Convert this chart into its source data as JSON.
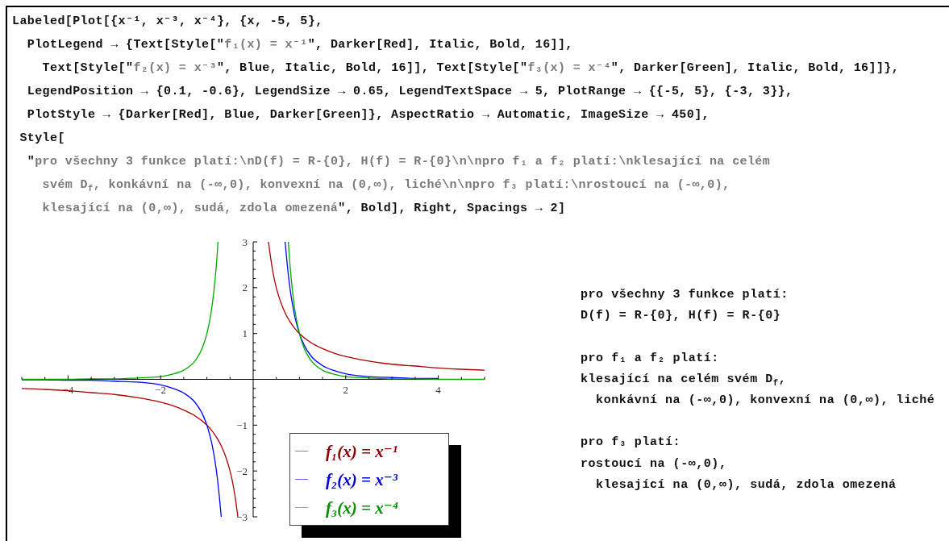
{
  "chart_data": {
    "type": "line",
    "series": [
      {
        "name": "f₁(x) = x⁻¹",
        "color": "#aa0000",
        "x": [
          -5,
          -4.5,
          -4,
          -3.5,
          -3,
          -2.5,
          -2,
          -1.75,
          -1.5,
          -1.25,
          -1,
          -0.9,
          -0.8,
          -0.7,
          -0.6,
          -0.5,
          -0.45,
          -0.4,
          -0.36,
          -0.33,
          0,
          0.33,
          0.36,
          0.4,
          0.45,
          0.5,
          0.6,
          0.7,
          0.8,
          0.9,
          1,
          1.25,
          1.5,
          1.75,
          2,
          2.5,
          3,
          3.5,
          4,
          4.5,
          5
        ],
        "values": [
          -0.2,
          -0.22,
          -0.25,
          -0.29,
          -0.33,
          -0.4,
          -0.5,
          -0.57,
          -0.67,
          -0.8,
          -1,
          -1.11,
          -1.25,
          -1.43,
          -1.67,
          -2,
          -2.22,
          -2.5,
          -2.78,
          -3,
          null,
          3,
          2.78,
          2.5,
          2.22,
          2,
          1.67,
          1.43,
          1.25,
          1.11,
          1,
          0.8,
          0.67,
          0.57,
          0.5,
          0.4,
          0.33,
          0.29,
          0.25,
          0.22,
          0.2
        ]
      },
      {
        "name": "f₂(x) = x⁻³",
        "color": "#0000ff",
        "x": [
          -5,
          -4.5,
          -4,
          -3.5,
          -3,
          -2.5,
          -2,
          -1.75,
          -1.5,
          -1.25,
          -1.1,
          -1,
          -0.95,
          -0.9,
          -0.85,
          -0.8,
          -0.75,
          -0.72,
          -0.69,
          0,
          0.69,
          0.72,
          0.75,
          0.8,
          0.85,
          0.9,
          0.95,
          1,
          1.1,
          1.25,
          1.5,
          1.75,
          2,
          2.5,
          3,
          3.5,
          4
        ],
        "values": [
          -0.01,
          -0.01,
          -0.02,
          -0.02,
          -0.04,
          -0.06,
          -0.12,
          -0.19,
          -0.3,
          -0.51,
          -0.75,
          -1,
          -1.17,
          -1.37,
          -1.63,
          -1.95,
          -2.37,
          -2.68,
          -3,
          null,
          3,
          2.68,
          2.37,
          1.95,
          1.63,
          1.37,
          1.17,
          1,
          0.75,
          0.51,
          0.3,
          0.19,
          0.12,
          0.06,
          0.04,
          0.02,
          0.02
        ]
      },
      {
        "name": "f₃(x) = x⁻⁴",
        "color": "#00aa00",
        "x": [
          -5,
          -4.5,
          -4,
          -3.5,
          -3,
          -2.5,
          -2,
          -1.75,
          -1.5,
          -1.25,
          -1.1,
          -1,
          -0.95,
          -0.9,
          -0.85,
          -0.8,
          -0.78,
          -0.76,
          0,
          0.76,
          0.78,
          0.8,
          0.85,
          0.9,
          0.95,
          1,
          1.1,
          1.25,
          1.5,
          1.75,
          2,
          2.5,
          3,
          3.5,
          4,
          4.5,
          5
        ],
        "values": [
          0,
          0,
          0,
          0.01,
          0.01,
          0.03,
          0.06,
          0.11,
          0.2,
          0.41,
          0.68,
          1,
          1.23,
          1.52,
          1.92,
          2.44,
          2.7,
          3,
          null,
          3,
          2.7,
          2.44,
          1.92,
          1.52,
          1.23,
          1,
          0.68,
          0.41,
          0.2,
          0.11,
          0.06,
          0.03,
          0.01,
          0.01,
          0,
          0,
          0
        ]
      }
    ],
    "xlim": [
      -5,
      5
    ],
    "ylim": [
      -3,
      3
    ],
    "xticks": [
      {
        "value": -5,
        "label": null
      },
      {
        "value": -4.5,
        "label": null
      },
      {
        "value": -4,
        "label": "−4"
      },
      {
        "value": -3.5,
        "label": null
      },
      {
        "value": -3,
        "label": null
      },
      {
        "value": -2.5,
        "label": null
      },
      {
        "value": -2,
        "label": "−2"
      },
      {
        "value": -1.5,
        "label": null
      },
      {
        "value": -1,
        "label": null
      },
      {
        "value": -0.5,
        "label": null
      },
      {
        "value": 0.5,
        "label": null
      },
      {
        "value": 1,
        "label": null
      },
      {
        "value": 1.5,
        "label": null
      },
      2,
      {
        "value": 2.5,
        "label": null
      },
      {
        "value": 3,
        "label": null
      },
      {
        "value": 3.5,
        "label": null
      },
      4,
      {
        "value": 4.5,
        "label": null
      },
      {
        "value": 5,
        "label": null
      }
    ],
    "yticks": [
      3,
      {
        "value": 2.8,
        "label": null
      },
      {
        "value": 2.6,
        "label": null
      },
      {
        "value": 2.4,
        "label": null
      },
      {
        "value": 2.2,
        "label": null
      },
      2,
      {
        "value": 1.8,
        "label": null
      },
      {
        "value": 1.6,
        "label": null
      },
      {
        "value": 1.4,
        "label": null
      },
      {
        "value": 1.2,
        "label": null
      },
      1,
      {
        "value": 0.8,
        "label": null
      },
      {
        "value": 0.6,
        "label": null
      },
      {
        "value": 0.4,
        "label": null
      },
      {
        "value": 0.2,
        "label": null
      },
      {
        "value": -0.2,
        "label": null
      },
      {
        "value": -0.4,
        "label": null
      },
      {
        "value": -0.6,
        "label": null
      },
      {
        "value": -0.8,
        "label": null
      },
      {
        "value": -1,
        "label": "−1"
      },
      {
        "value": -1.2,
        "label": null
      },
      {
        "value": -1.4,
        "label": null
      },
      {
        "value": -1.6,
        "label": null
      },
      {
        "value": -1.8,
        "label": null
      },
      {
        "value": -2,
        "label": "−2"
      },
      {
        "value": -2.2,
        "label": null
      },
      {
        "value": -2.4,
        "label": null
      },
      {
        "value": -2.6,
        "label": null
      },
      {
        "value": -2.8,
        "label": null
      },
      {
        "value": -3,
        "label": "−3"
      }
    ],
    "legend": "bottom right",
    "annotations": [
      "Labeled[Plot[{x⁻¹, x⁻³, x⁻⁴}, {x, -5, 5},\n  PlotLegend → {Text[Style[\"f₁(x) = x⁻¹\", Darker[Red], Italic, Bold, 16]],\n    Text[Style[\"f₂(x) = x⁻³\", Blue, Italic, Bold, 16]], Text[Style[\"f₃(x) = x⁻⁴\", Darker[Green], Italic, Bold, 16]]},\n  LegendPosition → {0.1, -0.6}, LegendSize → 0.65, LegendTextSpace → 5, PlotRange → {{-5, 5}, {-3, 3}},\n  PlotStyle → {Darker[Red], Blue, Darker[Green]}, AspectRatio → Automatic, ImageSize → 450],\n Style[\n  \"pro všechny 3 funkce platí:\\nD(f) = R-{0}, H(f) = R-{0}\\n\\npro f₁ a f₂ platí:\\nklesající na celém\n    svém D$_{f}$, konkávní na (-∞,0), konvexní na (0,∞), liché\\n\\npro f₃ platí:\\nrostoucí na (-∞,0),\n    klesající na (0,∞), sudá, zdola omezená\", Bold], Right, Spacings → 2]",
      "pro všechny 3 funkce platí:\nD(f) = R-{0}, H(f) = R-{0}\n\npro f₁ a f₂ platí:\nklesající na celém svém D$_{f}$,\n  konkávní na (-∞,0), konvexní na (0,∞), liché\n\npro f₃ platí:\nrostoucí na (-∞,0),\n  klesající na (0,∞), sudá, zdola omezená"
    ]
  }
}
